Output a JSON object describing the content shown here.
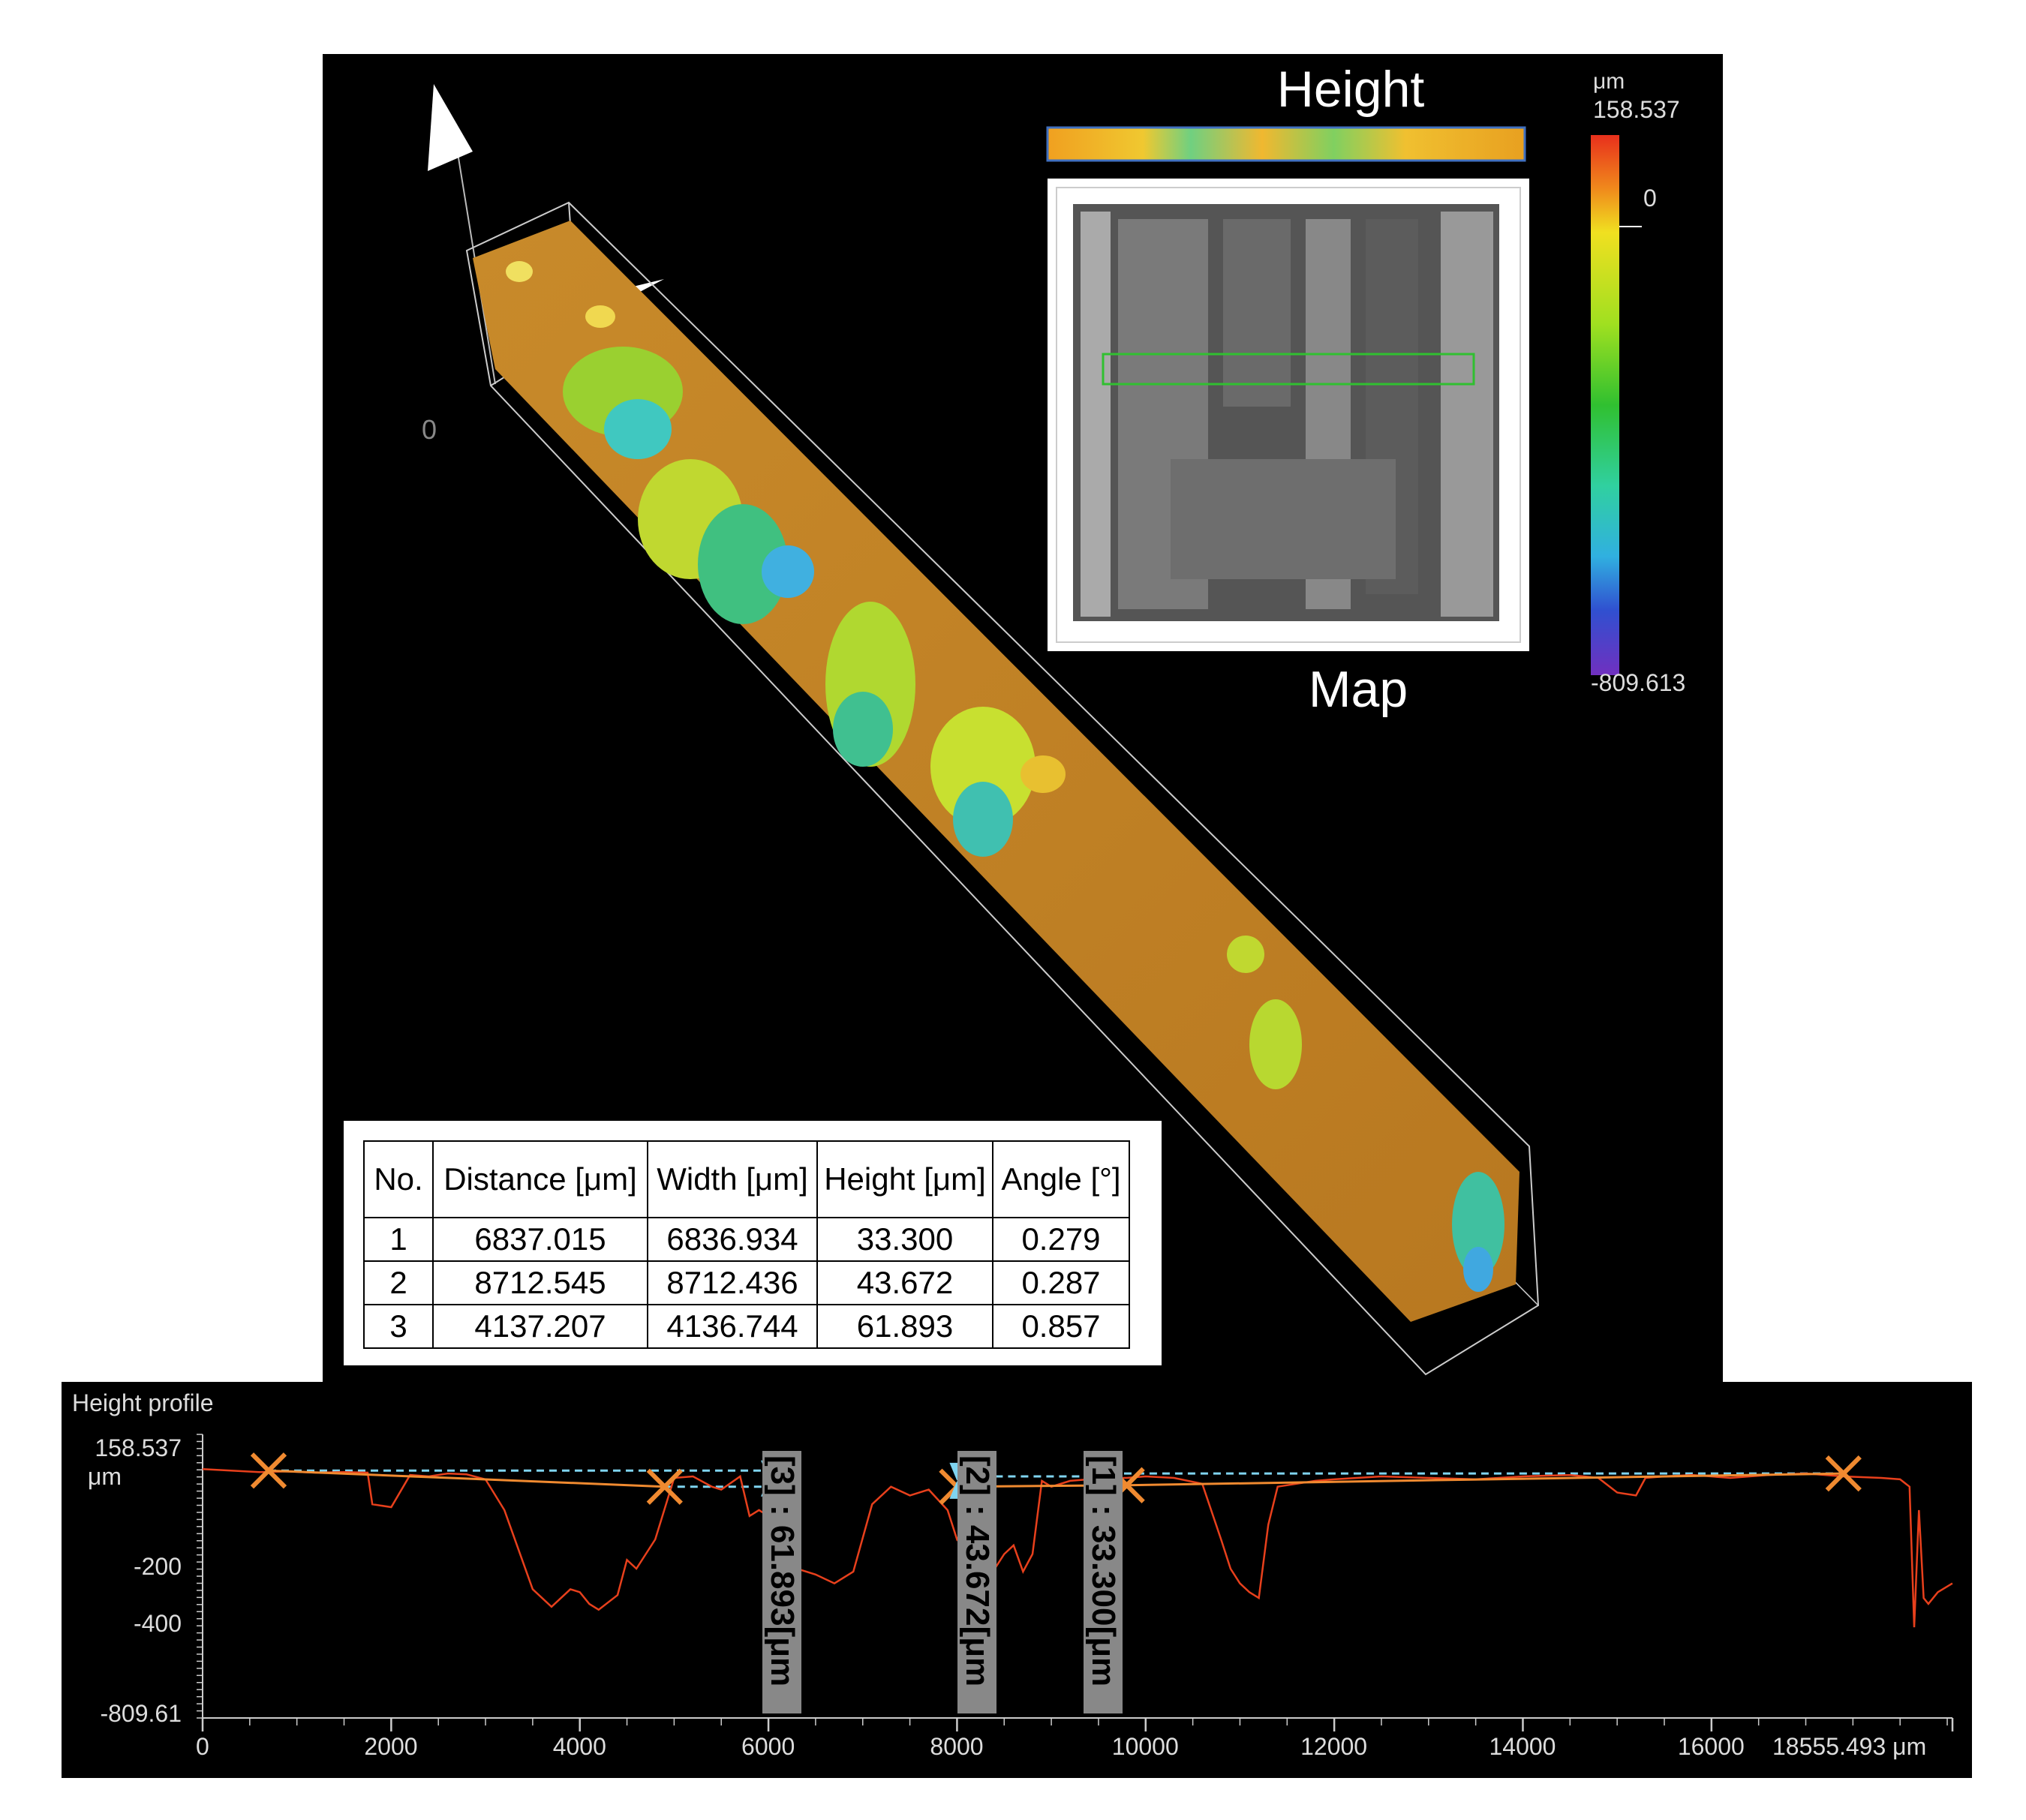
{
  "viewer": {
    "height_title": "Height",
    "map_title": "Map",
    "colorbar": {
      "unit": "μm",
      "max": "158.537",
      "zero": "0",
      "min": "-809.613"
    },
    "origin_label": "0"
  },
  "results_table": {
    "headers": [
      "No.",
      "Distance [μm]",
      "Width [μm]",
      "Height [μm]",
      "Angle [°]"
    ],
    "rows": [
      [
        "1",
        "6837.015",
        "6836.934",
        "33.300",
        "0.279"
      ],
      [
        "2",
        "8712.545",
        "8712.436",
        "43.672",
        "0.287"
      ],
      [
        "3",
        "4137.207",
        "4136.744",
        "61.893",
        "0.857"
      ]
    ]
  },
  "profile": {
    "title": "Height profile",
    "y_labels": {
      "top": "158.537",
      "top_unit": "μm",
      "m200": "-200",
      "m400": "-400",
      "bottom": "-809.61"
    },
    "x_labels": [
      "0",
      "2000",
      "4000",
      "6000",
      "8000",
      "10000",
      "12000",
      "14000",
      "16000",
      "18555.493 μm"
    ],
    "measure_labels": [
      "[3] : 61.893[μm",
      "[2] : 43.672[μm",
      "[1] : 33.300[μm"
    ],
    "colors": {
      "profile_line": "#e8401c",
      "marker": "#f08a30",
      "measure": "#7fd4f0"
    }
  },
  "chart_data": {
    "type": "line",
    "title": "Height profile",
    "xlabel": "",
    "ylabel": "μm",
    "xlim": [
      0,
      18555.493
    ],
    "ylim": [
      -809.61,
      158.537
    ],
    "x": [
      0,
      300,
      600,
      900,
      1200,
      1500,
      1750,
      1800,
      2000,
      2200,
      2400,
      2600,
      2800,
      3000,
      3200,
      3400,
      3500,
      3700,
      3800,
      3900,
      4000,
      4100,
      4200,
      4400,
      4500,
      4600,
      4800,
      5000,
      5200,
      5400,
      5500,
      5700,
      5800,
      5900,
      6000,
      6100,
      6300,
      6500,
      6700,
      6900,
      7100,
      7300,
      7500,
      7700,
      7900,
      8000,
      8100,
      8200,
      8300,
      8400,
      8500,
      8600,
      8700,
      8800,
      8900,
      9000,
      9200,
      9400,
      9600,
      9800,
      10000,
      10300,
      10600,
      10800,
      10900,
      11000,
      11100,
      11200,
      11300,
      11400,
      11600,
      11800,
      12000,
      12500,
      13000,
      13500,
      14000,
      14500,
      14800,
      15000,
      15200,
      15300,
      15500,
      15800,
      16200,
      16600,
      17000,
      17400,
      17800,
      18000,
      18100,
      18150,
      18200,
      18250,
      18300,
      18400,
      18555
    ],
    "series": [
      {
        "values": [
          40,
          35,
          30,
          32,
          28,
          30,
          28,
          -80,
          -90,
          20,
          15,
          25,
          22,
          5,
          -100,
          -280,
          -370,
          -430,
          -400,
          -370,
          -380,
          -420,
          -440,
          -390,
          -270,
          -300,
          -200,
          10,
          15,
          -20,
          -30,
          15,
          -120,
          -100,
          -120,
          -200,
          -300,
          -320,
          -350,
          -310,
          -80,
          -20,
          -50,
          -30,
          -100,
          -200,
          -150,
          -60,
          -200,
          -300,
          -250,
          -220,
          -310,
          -250,
          0,
          -20,
          0,
          5,
          10,
          10,
          15,
          10,
          -10,
          -200,
          -300,
          -350,
          -380,
          -400,
          -150,
          -20,
          -10,
          0,
          5,
          15,
          10,
          5,
          15,
          20,
          10,
          -40,
          -50,
          10,
          15,
          20,
          10,
          20,
          25,
          15,
          10,
          5,
          -20,
          -500,
          -100,
          -400,
          -420,
          -380,
          -350
        ]
      }
    ]
  }
}
